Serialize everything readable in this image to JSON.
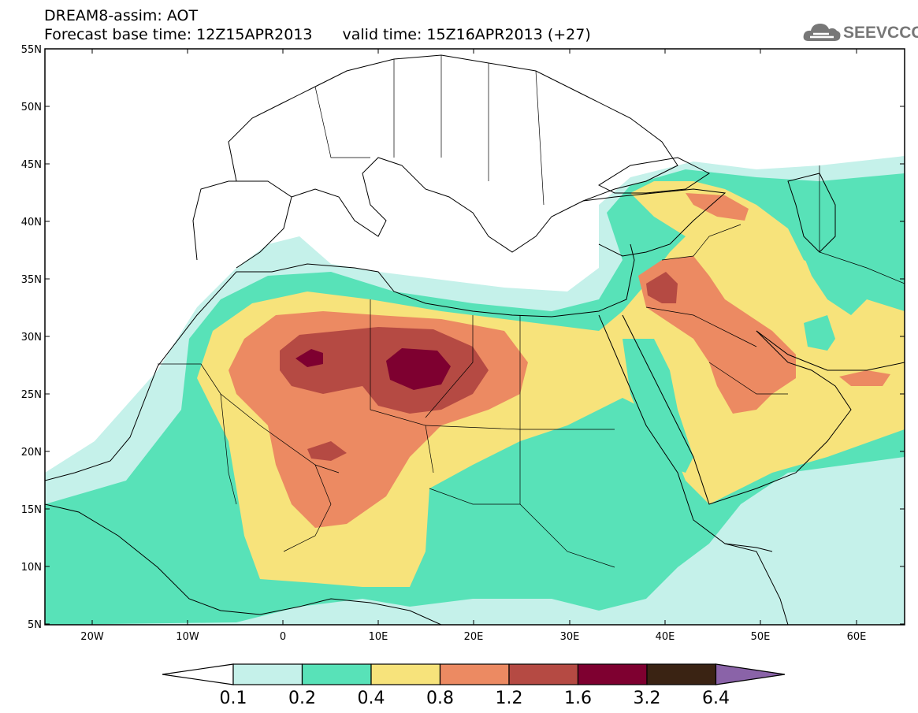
{
  "title": {
    "line1": "DREAM8-assim: AOT",
    "base_time": "Forecast base time: 12Z15APR2013",
    "valid_time": "valid time: 15Z16APR2013 (+27)"
  },
  "logo": {
    "text": "SEEVCCC",
    "icon": "cloud-icon"
  },
  "map": {
    "lat_labels": [
      "55N",
      "50N",
      "45N",
      "40N",
      "35N",
      "30N",
      "25N",
      "20N",
      "15N",
      "10N",
      "5N"
    ],
    "lon_labels": [
      "20W",
      "10W",
      "0",
      "10E",
      "20E",
      "30E",
      "40E",
      "50E",
      "60E"
    ]
  },
  "colorbar": {
    "labels": [
      "0.1",
      "0.2",
      "0.4",
      "0.8",
      "1.2",
      "1.6",
      "3.2",
      "6.4"
    ],
    "colors": [
      "#c5f1ea",
      "#58e2b8",
      "#f7e37b",
      "#ec8a62",
      "#b54a43",
      "#7e0030",
      "#3a2313",
      "#8a63a8"
    ]
  },
  "colors": {
    "sea": "#ffffff",
    "border": "#000000"
  }
}
